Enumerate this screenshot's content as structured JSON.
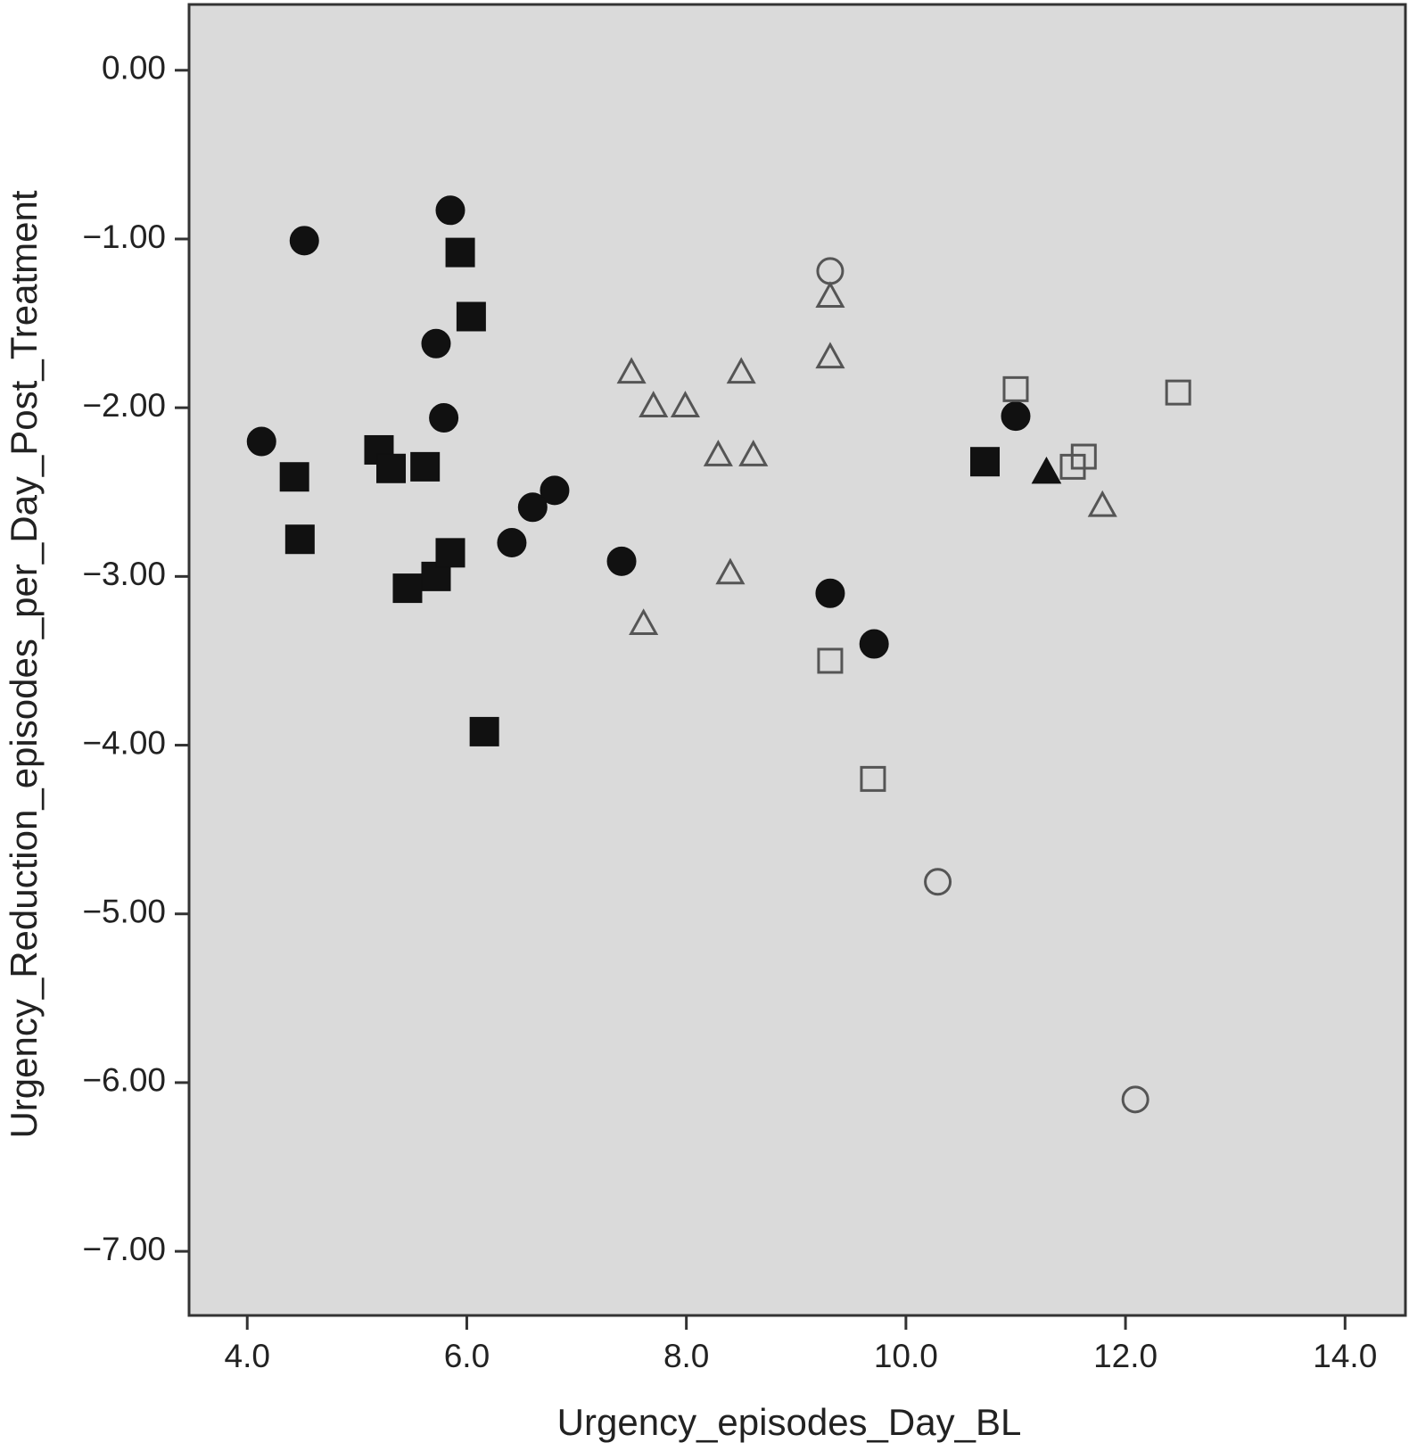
{
  "chart_data": {
    "type": "scatter",
    "xlabel": "Urgency_episodes_Day_BL",
    "ylabel": "Urgency_Reduction_episodes_per_Day_Post_Treatment",
    "xlim": [
      3.47,
      14.55
    ],
    "ylim": [
      -7.38,
      0.39
    ],
    "xticks": [
      {
        "value": 4,
        "label": "4.0"
      },
      {
        "value": 6,
        "label": "6.0"
      },
      {
        "value": 8,
        "label": "8.0"
      },
      {
        "value": 10,
        "label": "10.0"
      },
      {
        "value": 12,
        "label": "12.0"
      },
      {
        "value": 14,
        "label": "14.0"
      }
    ],
    "yticks": [
      {
        "value": 0,
        "label": "0.00"
      },
      {
        "value": -1,
        "label": "−1.00"
      },
      {
        "value": -2,
        "label": "−2.00"
      },
      {
        "value": -3,
        "label": "−3.00"
      },
      {
        "value": -4,
        "label": "−4.00"
      },
      {
        "value": -5,
        "label": "−5.00"
      },
      {
        "value": -6,
        "label": "−6.00"
      },
      {
        "value": -7,
        "label": "−7.00"
      }
    ],
    "background": "#dadada",
    "series": [
      {
        "marker": "circle",
        "filled": true,
        "color": "#111111",
        "x": [
          4.52,
          5.85,
          5.72,
          5.79,
          4.13,
          6.8,
          6.6,
          6.41,
          7.41,
          9.31,
          9.71,
          11.0
        ],
        "values": [
          -1.01,
          -0.83,
          -1.62,
          -2.06,
          -2.2,
          -2.49,
          -2.59,
          -2.8,
          -2.91,
          -3.1,
          -3.4,
          -2.05
        ]
      },
      {
        "marker": "square",
        "filled": true,
        "color": "#111111",
        "x": [
          5.94,
          6.04,
          4.43,
          4.48,
          5.2,
          5.31,
          5.62,
          5.46,
          5.72,
          5.85,
          6.16,
          10.72
        ],
        "values": [
          -1.08,
          -1.46,
          -2.41,
          -2.78,
          -2.25,
          -2.36,
          -2.35,
          -3.07,
          -3.0,
          -2.86,
          -3.92,
          -2.32
        ]
      },
      {
        "marker": "triangle",
        "filled": false,
        "color": "#555555",
        "x": [
          9.31,
          9.31,
          7.5,
          8.5,
          7.7,
          7.99,
          8.29,
          8.61,
          11.79,
          8.4,
          7.61
        ],
        "values": [
          -1.34,
          -1.7,
          -1.79,
          -1.79,
          -1.99,
          -1.99,
          -2.28,
          -2.28,
          -2.58,
          -2.98,
          -3.28
        ]
      },
      {
        "marker": "square",
        "filled": false,
        "color": "#555555",
        "x": [
          11.0,
          12.48,
          11.62,
          11.52,
          9.31,
          9.7
        ],
        "values": [
          -1.89,
          -1.91,
          -2.29,
          -2.35,
          -3.5,
          -4.2
        ]
      },
      {
        "marker": "circle",
        "filled": false,
        "color": "#555555",
        "x": [
          9.31,
          10.29,
          12.09
        ],
        "values": [
          -1.19,
          -4.81,
          -6.1
        ]
      },
      {
        "marker": "triangle",
        "filled": true,
        "color": "#111111",
        "x": [
          11.28
        ],
        "values": [
          -2.38
        ]
      }
    ]
  }
}
